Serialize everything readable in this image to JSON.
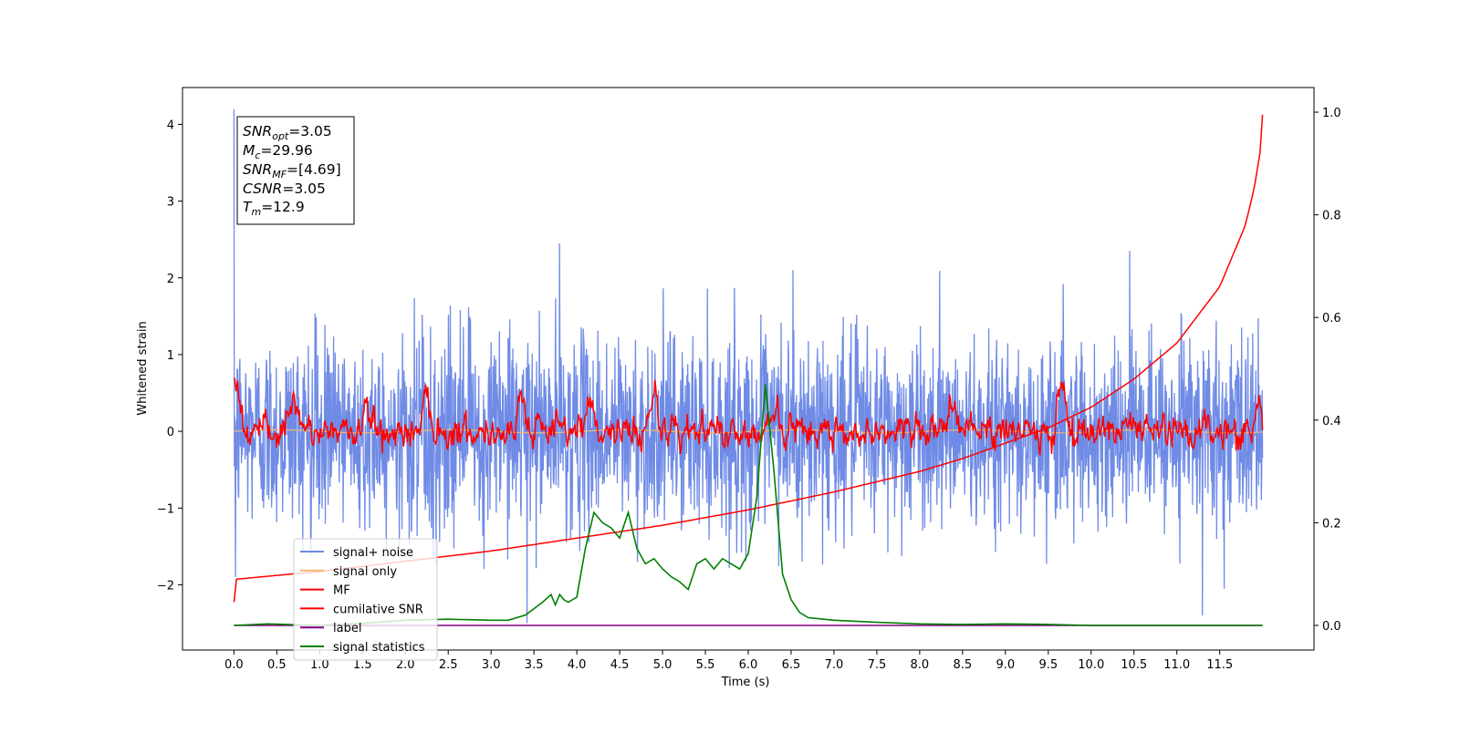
{
  "chart_data": {
    "type": "line",
    "xlabel": "Time (s)",
    "ylabel": "Whitened strain",
    "xlim": [
      -0.6,
      12.6
    ],
    "ylim": [
      -2.85,
      4.48
    ],
    "y2lim": [
      -0.048,
      1.048
    ],
    "x_ticks": [
      0.0,
      0.5,
      1.0,
      1.5,
      2.0,
      2.5,
      3.0,
      3.5,
      4.0,
      4.5,
      5.0,
      5.5,
      6.0,
      6.5,
      7.0,
      7.5,
      8.0,
      8.5,
      9.0,
      9.5,
      10.0,
      10.5,
      11.0,
      11.5
    ],
    "x_tick_labels": [
      "0.0",
      "0.5",
      "1.0",
      "1.5",
      "2.0",
      "2.5",
      "3.0",
      "3.5",
      "4.0",
      "4.5",
      "5.0",
      "5.5",
      "6.0",
      "6.5",
      "7.0",
      "7.5",
      "8.0",
      "8.5",
      "9.0",
      "9.5",
      "10.0",
      "10.5",
      "11.0",
      "11.5"
    ],
    "y_ticks": [
      -2,
      -1,
      0,
      1,
      2,
      3,
      4
    ],
    "y_tick_labels": [
      "−2",
      "−1",
      "0",
      "1",
      "2",
      "3",
      "4"
    ],
    "y2_ticks": [
      0.0,
      0.2,
      0.4,
      0.6,
      0.8,
      1.0
    ],
    "y2_tick_labels": [
      "0.0",
      "0.2",
      "0.4",
      "0.6",
      "0.8",
      "1.0"
    ],
    "grid": false,
    "legend_position": "lower-left",
    "annotations": {
      "snr_opt": {
        "symbol": "SNR",
        "sub": "opt",
        "value": "=3.05"
      },
      "mc": {
        "symbol": "M",
        "sub": "c",
        "value": "=29.96"
      },
      "snr_mf": {
        "symbol": "SNR",
        "sub": "MF",
        "value": "=[4.69]"
      },
      "csnr": {
        "symbol": "CSNR",
        "sub": "",
        "value": "=3.05"
      },
      "tm": {
        "symbol": "T",
        "sub": "m",
        "value": "=12.9"
      }
    },
    "series": [
      {
        "name": "signal+ noise",
        "axis": "left",
        "color": "#6f8be6",
        "note": "dense noisy trace between about -1.8 and 2.1, spike to 4.2 near t=0",
        "envelope_upper": 2.1,
        "envelope_lower": -1.8,
        "peaks": [
          [
            0.0,
            4.2
          ],
          [
            0.02,
            -1.9
          ],
          [
            3.8,
            2.45
          ],
          [
            3.42,
            -2.5
          ],
          [
            6.52,
            2.1
          ],
          [
            10.45,
            2.35
          ],
          [
            11.3,
            -2.4
          ],
          [
            11.55,
            -2.05
          ]
        ]
      },
      {
        "name": "signal only",
        "axis": "left",
        "color": "#f5b971",
        "x": [
          0.0,
          12.0
        ],
        "y": [
          0.0,
          0.0
        ]
      },
      {
        "name": "MF",
        "axis": "left",
        "color": "#ff0000",
        "note": "noisy trace around 0 with bumps to about 0.7",
        "bumps": [
          [
            0.02,
            0.95
          ],
          [
            0.7,
            0.45
          ],
          [
            1.55,
            0.4
          ],
          [
            2.25,
            0.6
          ],
          [
            3.35,
            0.65
          ],
          [
            4.15,
            0.55
          ],
          [
            4.9,
            0.7
          ],
          [
            6.3,
            0.35
          ],
          [
            8.4,
            0.5
          ],
          [
            9.65,
            0.7
          ],
          [
            11.95,
            0.4
          ]
        ]
      },
      {
        "name": "cumilative SNR",
        "axis": "right",
        "color": "#ff0000",
        "x": [
          0.0,
          0.02,
          1.0,
          2.0,
          3.0,
          4.0,
          5.0,
          6.0,
          7.0,
          8.0,
          8.5,
          9.0,
          9.5,
          10.0,
          10.5,
          11.0,
          11.5,
          11.8,
          11.9,
          11.95,
          11.98,
          12.0
        ],
        "y": [
          0.045,
          0.09,
          0.105,
          0.125,
          0.145,
          0.17,
          0.195,
          0.225,
          0.26,
          0.3,
          0.325,
          0.355,
          0.385,
          0.425,
          0.48,
          0.55,
          0.66,
          0.78,
          0.85,
          0.9,
          0.93,
          0.995
        ]
      },
      {
        "name": "label",
        "axis": "right",
        "color": "#800080",
        "x": [
          0.0,
          12.0
        ],
        "y": [
          0.0,
          0.0
        ]
      },
      {
        "name": "signal statistics",
        "axis": "right",
        "color": "#008000",
        "x": [
          0.0,
          0.4,
          1.0,
          1.5,
          2.0,
          2.5,
          3.0,
          3.2,
          3.4,
          3.6,
          3.7,
          3.75,
          3.8,
          3.85,
          3.9,
          4.0,
          4.1,
          4.2,
          4.3,
          4.4,
          4.5,
          4.6,
          4.7,
          4.8,
          4.9,
          5.0,
          5.1,
          5.2,
          5.3,
          5.4,
          5.5,
          5.6,
          5.7,
          5.8,
          5.9,
          6.0,
          6.1,
          6.2,
          6.3,
          6.4,
          6.5,
          6.6,
          6.7,
          7.0,
          7.5,
          8.0,
          8.5,
          9.0,
          9.5,
          10.0,
          11.0,
          12.0
        ],
        "y": [
          0.0,
          0.003,
          0.0,
          0.004,
          0.01,
          0.012,
          0.01,
          0.01,
          0.02,
          0.045,
          0.06,
          0.04,
          0.06,
          0.05,
          0.045,
          0.055,
          0.15,
          0.22,
          0.2,
          0.19,
          0.17,
          0.22,
          0.15,
          0.12,
          0.13,
          0.11,
          0.095,
          0.085,
          0.07,
          0.12,
          0.13,
          0.11,
          0.13,
          0.12,
          0.11,
          0.14,
          0.25,
          0.47,
          0.3,
          0.1,
          0.05,
          0.025,
          0.015,
          0.01,
          0.006,
          0.003,
          0.002,
          0.003,
          0.002,
          0.0,
          0.0,
          0.0
        ]
      }
    ]
  }
}
